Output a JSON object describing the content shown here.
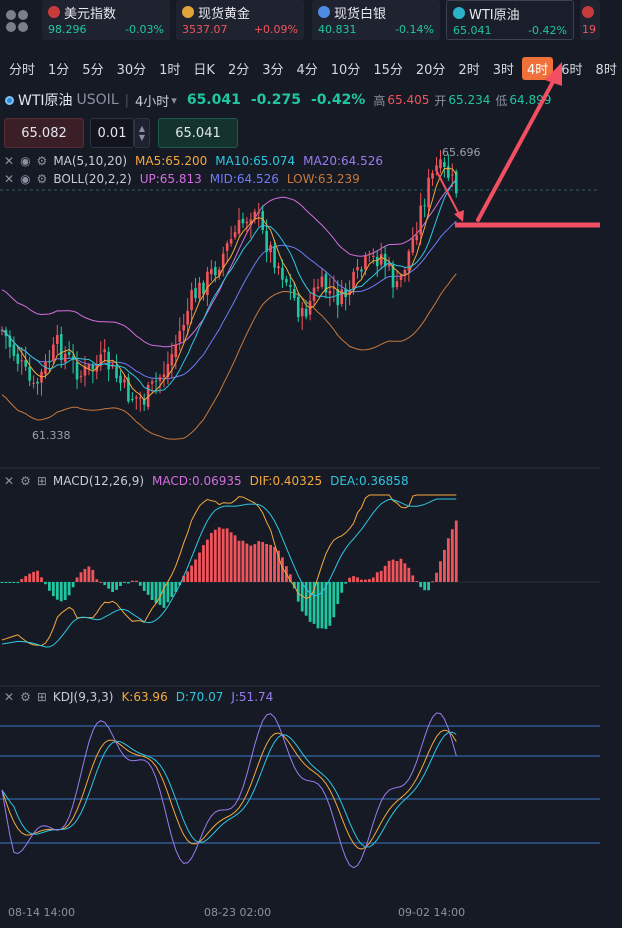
{
  "ticker": [
    {
      "name": "美元指数",
      "price": "98.296",
      "change": "-0.03%",
      "price_color": "#1fc7a0",
      "change_color": "#1fc7a0",
      "icon": "us-flag-icon",
      "icon_color": "#c83b3b"
    },
    {
      "name": "现货黄金",
      "price": "3537.07",
      "change": "+0.09%",
      "price_color": "#f2545b",
      "change_color": "#f2545b",
      "icon": "gold-icon",
      "icon_color": "#e0a53a"
    },
    {
      "name": "现货白银",
      "price": "40.831",
      "change": "-0.14%",
      "price_color": "#1fc7a0",
      "change_color": "#1fc7a0",
      "icon": "silver-icon",
      "icon_color": "#4f8be0"
    },
    {
      "name": "WTI原油",
      "price": "65.041",
      "change": "-0.42%",
      "price_color": "#1fc7a0",
      "change_color": "#1fc7a0",
      "icon": "oil-icon",
      "icon_color": "#2bb3c9"
    },
    {
      "name": "",
      "price": "19",
      "change": "",
      "price_color": "#f2545b",
      "change_color": "#f2545b",
      "icon": "uk-flag-icon",
      "icon_color": "#c83b3b"
    }
  ],
  "timeframes": [
    "分时",
    "1分",
    "5分",
    "30分",
    "1时",
    "日K",
    "2分",
    "3分",
    "4分",
    "10分",
    "15分",
    "20分",
    "2时",
    "3时",
    "4时",
    "6时",
    "8时"
  ],
  "active_timeframe": "4时",
  "symbol": {
    "name": "WTI原油",
    "code": "USOIL",
    "interval": "4小时",
    "dropdown": "▾",
    "price": "65.041",
    "change": "-0.275",
    "change_pct": "-0.42%",
    "high_label": "高",
    "high": "65.405",
    "open_label": "开",
    "open": "65.234",
    "low_label": "低",
    "low": "64.899",
    "trail": "6"
  },
  "order": {
    "sell_price": "65.082",
    "quantity": "0.01",
    "buy_price": "65.041",
    "step_up": "▲",
    "step_down": "▼"
  },
  "controls": {
    "close": "✕",
    "eye": "◉",
    "gear": "⚙",
    "expand": "⊞"
  },
  "indicators": {
    "ma": {
      "name": "MA(5,10,20)",
      "ma5": "MA5:65.200",
      "ma10": "MA10:65.074",
      "ma20": "MA20:64.526",
      "c5": "#f4a83b",
      "c10": "#2ec6e0",
      "c20": "#9a7cf0"
    },
    "boll": {
      "name": "BOLL(20,2,2)",
      "up": "UP:65.813",
      "mid": "MID:64.526",
      "low": "LOW:63.239",
      "cu": "#d36fe0",
      "cm": "#6f7cf5",
      "cl": "#c8793b"
    },
    "macd": {
      "name": "MACD(12,26,9)",
      "macd": "MACD:0.06935",
      "dif": "DIF:0.40325",
      "dea": "DEA:0.36858",
      "cm": "#d36fe0",
      "cdif": "#f4a83b",
      "cdea": "#2ec6e0"
    },
    "kdj": {
      "name": "KDJ(9,3,3)",
      "k": "K:63.96",
      "d": "D:70.07",
      "j": "J:51.74",
      "ck": "#f4a83b",
      "cd": "#2ec6e0",
      "cj": "#9a7cf0"
    }
  },
  "labels": {
    "high_mark": "65.696",
    "low_mark": "61.338"
  },
  "time_axis": [
    "08-14 14:00",
    "08-23 02:00",
    "09-02 14:00"
  ],
  "colors": {
    "up": "#f2545b",
    "down": "#1fc7a0",
    "accent": "#f0703a",
    "annotation": "#f24f62"
  }
}
